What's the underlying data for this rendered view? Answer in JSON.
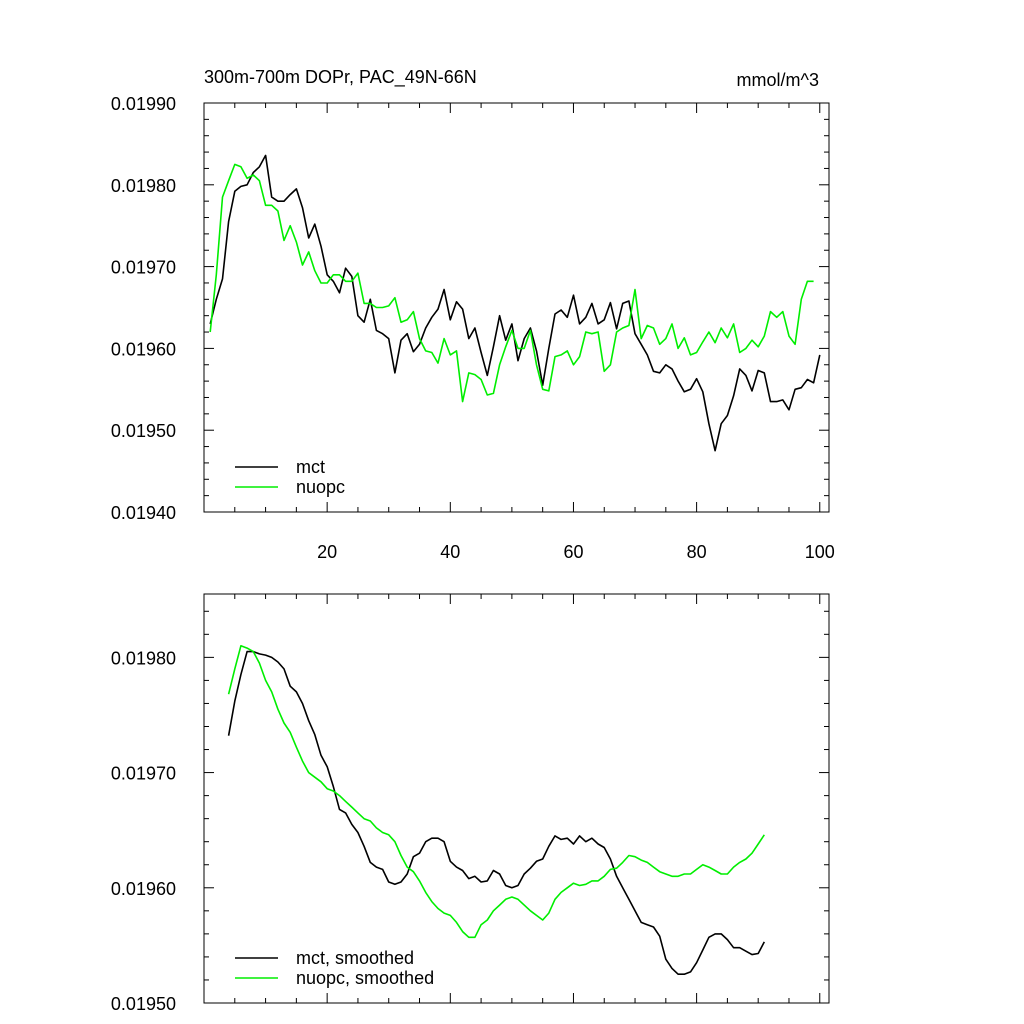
{
  "chart_data": [
    {
      "type": "line",
      "title": "300m-700m DOPr, PAC_49N-66N",
      "units": "mmol/m^3",
      "xlim": [
        0,
        101.5
      ],
      "ylim": [
        0.0194,
        0.0199
      ],
      "x_ticks": [
        20,
        40,
        60,
        80,
        100
      ],
      "y_ticks": [
        "0.01940",
        "0.01950",
        "0.01960",
        "0.01970",
        "0.01980",
        "0.01990"
      ],
      "grid": false,
      "legend_position": "bottom-left",
      "series": [
        {
          "name": "mct",
          "color": "#000000",
          "x_start": 1,
          "values": [
            0.01963,
            0.01966,
            0.019685,
            0.019755,
            0.019792,
            0.019798,
            0.0198,
            0.019815,
            0.019822,
            0.019836,
            0.019785,
            0.01978,
            0.01978,
            0.019788,
            0.019795,
            0.019772,
            0.019735,
            0.019752,
            0.019725,
            0.01969,
            0.019682,
            0.019668,
            0.019698,
            0.019688,
            0.01964,
            0.019632,
            0.01966,
            0.019622,
            0.019618,
            0.019612,
            0.01957,
            0.01961,
            0.019618,
            0.019596,
            0.019605,
            0.019625,
            0.019638,
            0.019648,
            0.019672,
            0.019635,
            0.019657,
            0.019648,
            0.019612,
            0.019625,
            0.019595,
            0.019567,
            0.019602,
            0.01964,
            0.01961,
            0.01963,
            0.019585,
            0.019612,
            0.019625,
            0.019597,
            0.019555,
            0.0196,
            0.019642,
            0.019647,
            0.019638,
            0.019665,
            0.01963,
            0.019638,
            0.019655,
            0.01963,
            0.019635,
            0.019656,
            0.019624,
            0.019655,
            0.019658,
            0.019618,
            0.019605,
            0.019592,
            0.019572,
            0.01957,
            0.01958,
            0.019575,
            0.01956,
            0.019547,
            0.01955,
            0.019563,
            0.019547,
            0.019508,
            0.019475,
            0.019508,
            0.019518,
            0.019542,
            0.019575,
            0.019567,
            0.019548,
            0.019573,
            0.01957,
            0.019535,
            0.019535,
            0.019537,
            0.019525,
            0.01955,
            0.019552,
            0.019562,
            0.019558,
            0.019592
          ]
        },
        {
          "name": "nuopc",
          "color": "#00ee00",
          "x_start": 1,
          "values": [
            0.01962,
            0.01969,
            0.019785,
            0.019805,
            0.019825,
            0.019822,
            0.019808,
            0.019812,
            0.019805,
            0.019775,
            0.019775,
            0.019768,
            0.019732,
            0.01975,
            0.01973,
            0.019702,
            0.019718,
            0.019695,
            0.01968,
            0.01968,
            0.01969,
            0.01969,
            0.019682,
            0.019682,
            0.019692,
            0.019655,
            0.019655,
            0.01965,
            0.01965,
            0.019652,
            0.019662,
            0.019632,
            0.019635,
            0.019645,
            0.019612,
            0.019597,
            0.019595,
            0.019582,
            0.019612,
            0.019592,
            0.019597,
            0.019535,
            0.01957,
            0.019568,
            0.019562,
            0.019543,
            0.019545,
            0.01958,
            0.019602,
            0.019622,
            0.0196,
            0.0196,
            0.019622,
            0.01958,
            0.01955,
            0.019548,
            0.01959,
            0.019592,
            0.019597,
            0.01958,
            0.01959,
            0.01962,
            0.019618,
            0.01962,
            0.019572,
            0.01958,
            0.01962,
            0.019625,
            0.019628,
            0.019672,
            0.019612,
            0.019628,
            0.019625,
            0.019605,
            0.019612,
            0.01963,
            0.0196,
            0.019613,
            0.019592,
            0.019595,
            0.019608,
            0.01962,
            0.019607,
            0.019625,
            0.019613,
            0.01963,
            0.019595,
            0.0196,
            0.01961,
            0.019602,
            0.019615,
            0.019645,
            0.019638,
            0.019645,
            0.019615,
            0.019605,
            0.01966,
            0.019682,
            0.019682
          ]
        }
      ]
    },
    {
      "type": "line",
      "title": "",
      "xlim": [
        0,
        101.5
      ],
      "ylim": [
        0.0195,
        0.019855
      ],
      "x_ticks": [
        20,
        40,
        60,
        80,
        100
      ],
      "y_ticks": [
        "0.01950",
        "0.01960",
        "0.01970",
        "0.01980"
      ],
      "grid": false,
      "legend_position": "bottom-left",
      "series": [
        {
          "name": "mct, smoothed",
          "color": "#000000",
          "x_start": 4,
          "values": [
            0.019732,
            0.019762,
            0.019785,
            0.019805,
            0.019805,
            0.019803,
            0.019802,
            0.0198,
            0.019796,
            0.01979,
            0.019775,
            0.01977,
            0.01976,
            0.019745,
            0.019733,
            0.019715,
            0.019705,
            0.019688,
            0.019668,
            0.019665,
            0.019655,
            0.019648,
            0.019636,
            0.019622,
            0.019618,
            0.019616,
            0.019605,
            0.019603,
            0.019605,
            0.019612,
            0.019627,
            0.01963,
            0.01964,
            0.019643,
            0.019643,
            0.01964,
            0.019623,
            0.019618,
            0.019615,
            0.019608,
            0.01961,
            0.019605,
            0.019606,
            0.019615,
            0.019612,
            0.019602,
            0.0196,
            0.019602,
            0.019612,
            0.019617,
            0.019623,
            0.019625,
            0.019636,
            0.019645,
            0.019642,
            0.019643,
            0.019638,
            0.019645,
            0.01964,
            0.019643,
            0.019638,
            0.019635,
            0.019625,
            0.01961,
            0.0196,
            0.01959,
            0.01958,
            0.01957,
            0.019568,
            0.019566,
            0.019558,
            0.019538,
            0.01953,
            0.019525,
            0.019525,
            0.019527,
            0.019535,
            0.019546,
            0.019557,
            0.01956,
            0.01956,
            0.019555,
            0.019548,
            0.019548,
            0.019545,
            0.019542,
            0.019543,
            0.019553
          ]
        },
        {
          "name": "nuopc, smoothed",
          "color": "#00ee00",
          "x_start": 4,
          "values": [
            0.019768,
            0.01979,
            0.01981,
            0.019808,
            0.019805,
            0.019795,
            0.01978,
            0.01977,
            0.019755,
            0.019743,
            0.019735,
            0.019722,
            0.01971,
            0.0197,
            0.019696,
            0.019692,
            0.019686,
            0.019684,
            0.01968,
            0.019675,
            0.01967,
            0.019665,
            0.01966,
            0.019658,
            0.019652,
            0.019648,
            0.019646,
            0.01964,
            0.019628,
            0.019618,
            0.019614,
            0.019606,
            0.019596,
            0.019588,
            0.019582,
            0.019578,
            0.019576,
            0.01957,
            0.019562,
            0.019557,
            0.019557,
            0.019568,
            0.019572,
            0.01958,
            0.019585,
            0.01959,
            0.019592,
            0.01959,
            0.019585,
            0.01958,
            0.019576,
            0.019572,
            0.019578,
            0.01959,
            0.019596,
            0.0196,
            0.019604,
            0.019602,
            0.019603,
            0.019606,
            0.019606,
            0.01961,
            0.019616,
            0.019617,
            0.019622,
            0.019628,
            0.019627,
            0.019624,
            0.019622,
            0.019618,
            0.019614,
            0.019612,
            0.01961,
            0.01961,
            0.019612,
            0.019612,
            0.019616,
            0.01962,
            0.019618,
            0.019615,
            0.019612,
            0.019612,
            0.019618,
            0.019622,
            0.019625,
            0.01963,
            0.019638,
            0.019646
          ]
        }
      ]
    }
  ]
}
